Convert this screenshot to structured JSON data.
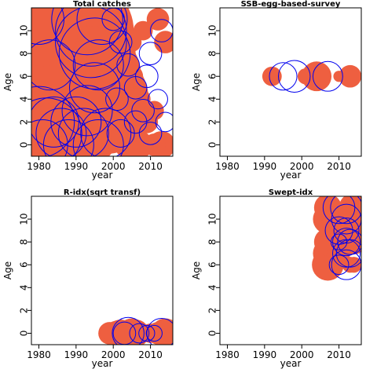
{
  "colors": {
    "residual_positive": "#ee5f40",
    "residual_negative": "#0000ee",
    "axis": "#000000"
  },
  "chart_data": [
    {
      "type": "scatter",
      "subtype": "bubble-residuals",
      "title": "Total catches",
      "xlabel": "year",
      "ylabel": "Age",
      "xlim": [
        1978,
        2016
      ],
      "ylim": [
        -1,
        12
      ],
      "xticks": [
        1980,
        1990,
        2000,
        2010
      ],
      "yticks": [
        0,
        2,
        4,
        6,
        8,
        10
      ],
      "points": [
        {
          "x": 1980,
          "y": 11,
          "r": 3
        },
        {
          "x": 1981,
          "y": 10,
          "r": 2
        },
        {
          "x": 1982,
          "y": 9,
          "r": 3
        },
        {
          "x": 1983,
          "y": 8,
          "r": 4
        },
        {
          "x": 1984,
          "y": 7,
          "r": 4
        },
        {
          "x": 1985,
          "y": 6,
          "r": 5
        },
        {
          "x": 1986,
          "y": 5,
          "r": 5
        },
        {
          "x": 1987,
          "y": 9,
          "r": 6
        },
        {
          "x": 1988,
          "y": 3,
          "r": 4
        },
        {
          "x": 1989,
          "y": 2,
          "r": 4
        },
        {
          "x": 1990,
          "y": 8,
          "r": 5
        },
        {
          "x": 1992,
          "y": 10,
          "r": 4
        },
        {
          "x": 1994,
          "y": 6,
          "r": 4
        },
        {
          "x": 1996,
          "y": 4,
          "r": 4
        },
        {
          "x": 1998,
          "y": 3,
          "r": 3
        },
        {
          "x": 1982,
          "y": 1,
          "r": 3
        },
        {
          "x": 1986,
          "y": 0,
          "r": 3
        },
        {
          "x": 1990,
          "y": 1,
          "r": 2
        },
        {
          "x": 1980,
          "y": 11,
          "r": -1
        },
        {
          "x": 1980,
          "y": 2,
          "r": -2
        },
        {
          "x": 1982,
          "y": 1,
          "r": -2
        },
        {
          "x": 1981,
          "y": 0,
          "r": -1
        },
        {
          "x": 1984,
          "y": 2,
          "r": -1
        },
        {
          "x": 1986,
          "y": 1,
          "r": -1
        },
        {
          "x": 1988,
          "y": 0,
          "r": -1
        },
        {
          "x": 1990,
          "y": 2,
          "r": -1
        },
        {
          "x": 1992,
          "y": 1,
          "r": -1
        },
        {
          "x": 1993,
          "y": 11,
          "r": -2
        },
        {
          "x": 1994,
          "y": 10,
          "r": -2
        },
        {
          "x": 1994,
          "y": 9,
          "r": -2
        },
        {
          "x": 1995,
          "y": 8,
          "r": -2
        },
        {
          "x": 1996,
          "y": 7,
          "r": -1
        },
        {
          "x": 1997,
          "y": 11,
          "r": -1
        },
        {
          "x": 1998,
          "y": 1,
          "r": -1
        },
        {
          "x": 1996,
          "y": 0,
          "r": -1
        },
        {
          "x": 1983,
          "y": 7,
          "r": -1
        },
        {
          "x": 1995,
          "y": 5,
          "r": -1
        },
        {
          "x": 1993,
          "y": 3,
          "r": -1
        },
        {
          "x": 2000,
          "y": 11,
          "r": -0.2
        },
        {
          "x": 2001,
          "y": 10,
          "r": 0.2
        },
        {
          "x": 2002,
          "y": 9,
          "r": -0.2
        },
        {
          "x": 2003,
          "y": 8,
          "r": 0.2
        },
        {
          "x": 2004,
          "y": 7,
          "r": -0.2
        },
        {
          "x": 2005,
          "y": 6,
          "r": 0.2
        },
        {
          "x": 2006,
          "y": 5,
          "r": -0.2
        },
        {
          "x": 2007,
          "y": 4,
          "r": 0.2
        },
        {
          "x": 2008,
          "y": 3,
          "r": -0.2
        },
        {
          "x": 2009,
          "y": 2,
          "r": 0.2
        },
        {
          "x": 2010,
          "y": 1,
          "r": -0.2
        },
        {
          "x": 2011,
          "y": 0,
          "r": 0.2
        },
        {
          "x": 2012,
          "y": 11,
          "r": 0.2
        },
        {
          "x": 2013,
          "y": 10,
          "r": -0.2
        },
        {
          "x": 2014,
          "y": 9,
          "r": 0.2
        },
        {
          "x": 2004,
          "y": 0,
          "r": 0.3
        },
        {
          "x": 2007,
          "y": 0,
          "r": 0.3
        },
        {
          "x": 2013,
          "y": 0,
          "r": 0.3
        },
        {
          "x": 2002,
          "y": 1,
          "r": -0.3
        },
        {
          "x": 2006,
          "y": 2,
          "r": -0.2
        },
        {
          "x": 2010,
          "y": 8,
          "r": -0.2
        },
        {
          "x": 2009,
          "y": 6,
          "r": -0.2
        },
        {
          "x": 2001,
          "y": 4,
          "r": -0.2
        },
        {
          "x": 2011,
          "y": 3,
          "r": 0.15
        },
        {
          "x": 2003,
          "y": 5,
          "r": 0.15
        },
        {
          "x": 2000,
          "y": 7,
          "r": 0.15
        },
        {
          "x": 2005,
          "y": 9,
          "r": 0.15
        },
        {
          "x": 2008,
          "y": 10,
          "r": 0.15
        },
        {
          "x": 2012,
          "y": 4,
          "r": -0.15
        },
        {
          "x": 2014,
          "y": 2,
          "r": -0.15
        }
      ]
    },
    {
      "type": "scatter",
      "subtype": "bubble-residuals",
      "title": "SSB-egg-based-survey",
      "xlabel": "year",
      "ylabel": "Age",
      "xlim": [
        1978,
        2016
      ],
      "ylim": [
        -1,
        12
      ],
      "xticks": [
        1980,
        1990,
        2000,
        2010
      ],
      "yticks": [
        0,
        2,
        4,
        6,
        8,
        10
      ],
      "points": [
        {
          "x": 1992,
          "y": 6,
          "r": 0.15
        },
        {
          "x": 1995,
          "y": 6,
          "r": -0.3
        },
        {
          "x": 1998,
          "y": 6,
          "r": -0.4
        },
        {
          "x": 2001,
          "y": 6,
          "r": 0.1
        },
        {
          "x": 2004,
          "y": 6,
          "r": 0.35
        },
        {
          "x": 2007,
          "y": 6,
          "r": -0.35
        },
        {
          "x": 2010,
          "y": 6,
          "r": 0.05
        },
        {
          "x": 2013,
          "y": 6,
          "r": 0.2
        }
      ]
    },
    {
      "type": "scatter",
      "subtype": "bubble-residuals",
      "title": "R-idx(sqrt transf)",
      "xlabel": "year",
      "ylabel": "Age",
      "xlim": [
        1978,
        2016
      ],
      "ylim": [
        -1,
        12
      ],
      "xticks": [
        1980,
        1990,
        2000,
        2010
      ],
      "yticks": [
        0,
        2,
        4,
        6,
        8,
        10
      ],
      "points": [
        {
          "x": 1998,
          "y": 0,
          "r": 0.05
        },
        {
          "x": 1999,
          "y": 0,
          "r": 0.2
        },
        {
          "x": 2000,
          "y": 0,
          "r": 0.2
        },
        {
          "x": 2001,
          "y": 0,
          "r": 0.25
        },
        {
          "x": 2002,
          "y": 0,
          "r": 0.3
        },
        {
          "x": 2003,
          "y": 0,
          "r": -0.2
        },
        {
          "x": 2004,
          "y": 0,
          "r": -0.4
        },
        {
          "x": 2005,
          "y": 0,
          "r": 0.35
        },
        {
          "x": 2006,
          "y": 0,
          "r": 0.3
        },
        {
          "x": 2007,
          "y": 0,
          "r": -0.15
        },
        {
          "x": 2008,
          "y": 0,
          "r": 0.1
        },
        {
          "x": 2009,
          "y": 0,
          "r": -0.1
        },
        {
          "x": 2010,
          "y": 0,
          "r": 0.15
        },
        {
          "x": 2011,
          "y": 0,
          "r": -0.1
        },
        {
          "x": 2012,
          "y": 0,
          "r": 0.2
        },
        {
          "x": 2013,
          "y": 0,
          "r": -0.35
        },
        {
          "x": 2014,
          "y": 0,
          "r": 0.35
        }
      ]
    },
    {
      "type": "scatter",
      "subtype": "bubble-residuals",
      "title": "Swept-idx",
      "xlabel": "year",
      "ylabel": "Age",
      "xlim": [
        1978,
        2016
      ],
      "ylim": [
        -1,
        12
      ],
      "xticks": [
        1980,
        1990,
        2000,
        2010
      ],
      "yticks": [
        0,
        2,
        4,
        6,
        8,
        10
      ],
      "points": [
        {
          "x": 2007,
          "y": 11,
          "r": 0.3
        },
        {
          "x": 2007,
          "y": 10,
          "r": 0.35
        },
        {
          "x": 2007,
          "y": 9,
          "r": 0.1
        },
        {
          "x": 2007,
          "y": 8,
          "r": 0.3
        },
        {
          "x": 2007,
          "y": 7,
          "r": 0.35
        },
        {
          "x": 2007,
          "y": 6,
          "r": 0.4
        },
        {
          "x": 2010,
          "y": 11,
          "r": -0.4
        },
        {
          "x": 2010,
          "y": 10,
          "r": 0.3
        },
        {
          "x": 2010,
          "y": 9,
          "r": -0.3
        },
        {
          "x": 2010,
          "y": 8,
          "r": -0.1
        },
        {
          "x": 2010,
          "y": 7,
          "r": 0.2
        },
        {
          "x": 2010,
          "y": 6,
          "r": -0.15
        },
        {
          "x": 2012,
          "y": 11,
          "r": -0.4
        },
        {
          "x": 2012,
          "y": 10,
          "r": -0.35
        },
        {
          "x": 2012,
          "y": 9,
          "r": -0.25
        },
        {
          "x": 2012,
          "y": 8,
          "r": -0.3
        },
        {
          "x": 2012,
          "y": 7,
          "r": -0.3
        },
        {
          "x": 2012,
          "y": 6,
          "r": -0.35
        },
        {
          "x": 2013,
          "y": 10,
          "r": 0.3
        },
        {
          "x": 2013,
          "y": 9,
          "r": 0.3
        },
        {
          "x": 2013,
          "y": 8,
          "r": -0.25
        },
        {
          "x": 2013,
          "y": 7,
          "r": -0.3
        },
        {
          "x": 2013,
          "y": 6,
          "r": 0.1
        },
        {
          "x": 2014,
          "y": 11,
          "r": 0.35
        },
        {
          "x": 2014,
          "y": 10,
          "r": 0.3
        },
        {
          "x": 2014,
          "y": 9,
          "r": 0.3
        },
        {
          "x": 2014,
          "y": 8,
          "r": 0.25
        },
        {
          "x": 2014,
          "y": 6,
          "r": 0.1
        }
      ]
    }
  ]
}
